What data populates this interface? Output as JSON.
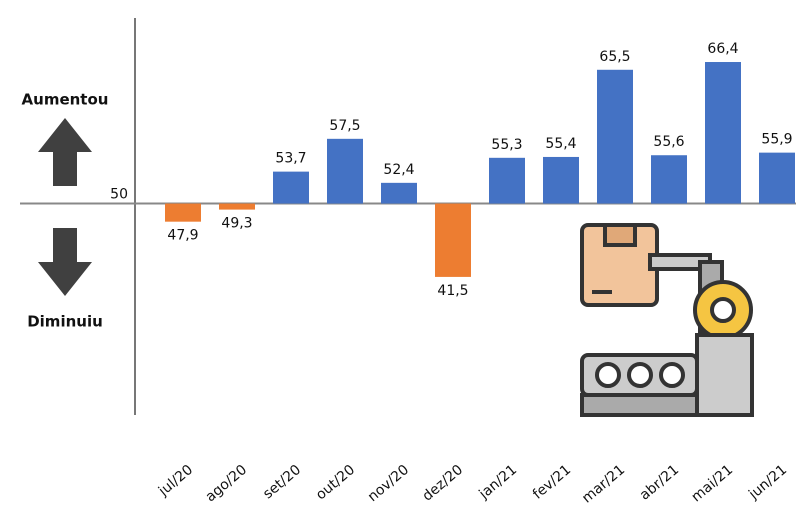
{
  "chart_data": {
    "type": "bar",
    "categories": [
      "jul/20",
      "ago/20",
      "set/20",
      "out/20",
      "nov/20",
      "dez/20",
      "jan/21",
      "fev/21",
      "mar/21",
      "abr/21",
      "mai/21",
      "jun/21"
    ],
    "values": [
      47.9,
      49.3,
      53.7,
      57.5,
      52.4,
      41.5,
      55.3,
      55.4,
      65.5,
      55.6,
      66.4,
      55.9
    ],
    "value_labels": [
      "47,9",
      "49,3",
      "53,7",
      "57,5",
      "52,4",
      "41,5",
      "55,3",
      "55,4",
      "65,5",
      "55,6",
      "66,4",
      "55,9"
    ],
    "color_above": "#4472c4",
    "color_below": "#ed7d31",
    "ylim": [
      25.5,
      71.5
    ],
    "yticks": [
      50
    ],
    "label_up": "Aumentou",
    "label_down": "Diminuiu"
  }
}
